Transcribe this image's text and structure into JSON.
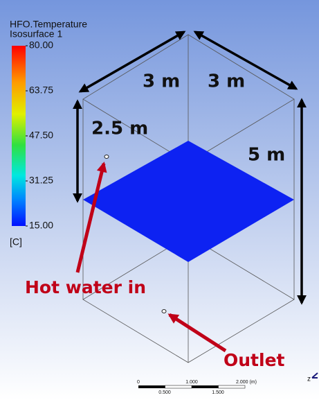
{
  "legend": {
    "title": "HFO.Temperature",
    "subtitle": "Isosurface 1",
    "labels": [
      "80.00",
      "63.75",
      "47.50",
      "31.25",
      "15.00"
    ],
    "unit": "[C]"
  },
  "dimensions": {
    "top_left": "3 m",
    "top_right": "3 m",
    "left": "2.5 m",
    "right": "5 m"
  },
  "annotations": {
    "inlet": "Hot water in",
    "outlet": "Outlet"
  },
  "scale_bar": {
    "top_labels": [
      "0",
      "1.000",
      "2.000 (m)"
    ],
    "bottom_labels": [
      "0.500",
      "1.500"
    ]
  },
  "axis_label": "z"
}
